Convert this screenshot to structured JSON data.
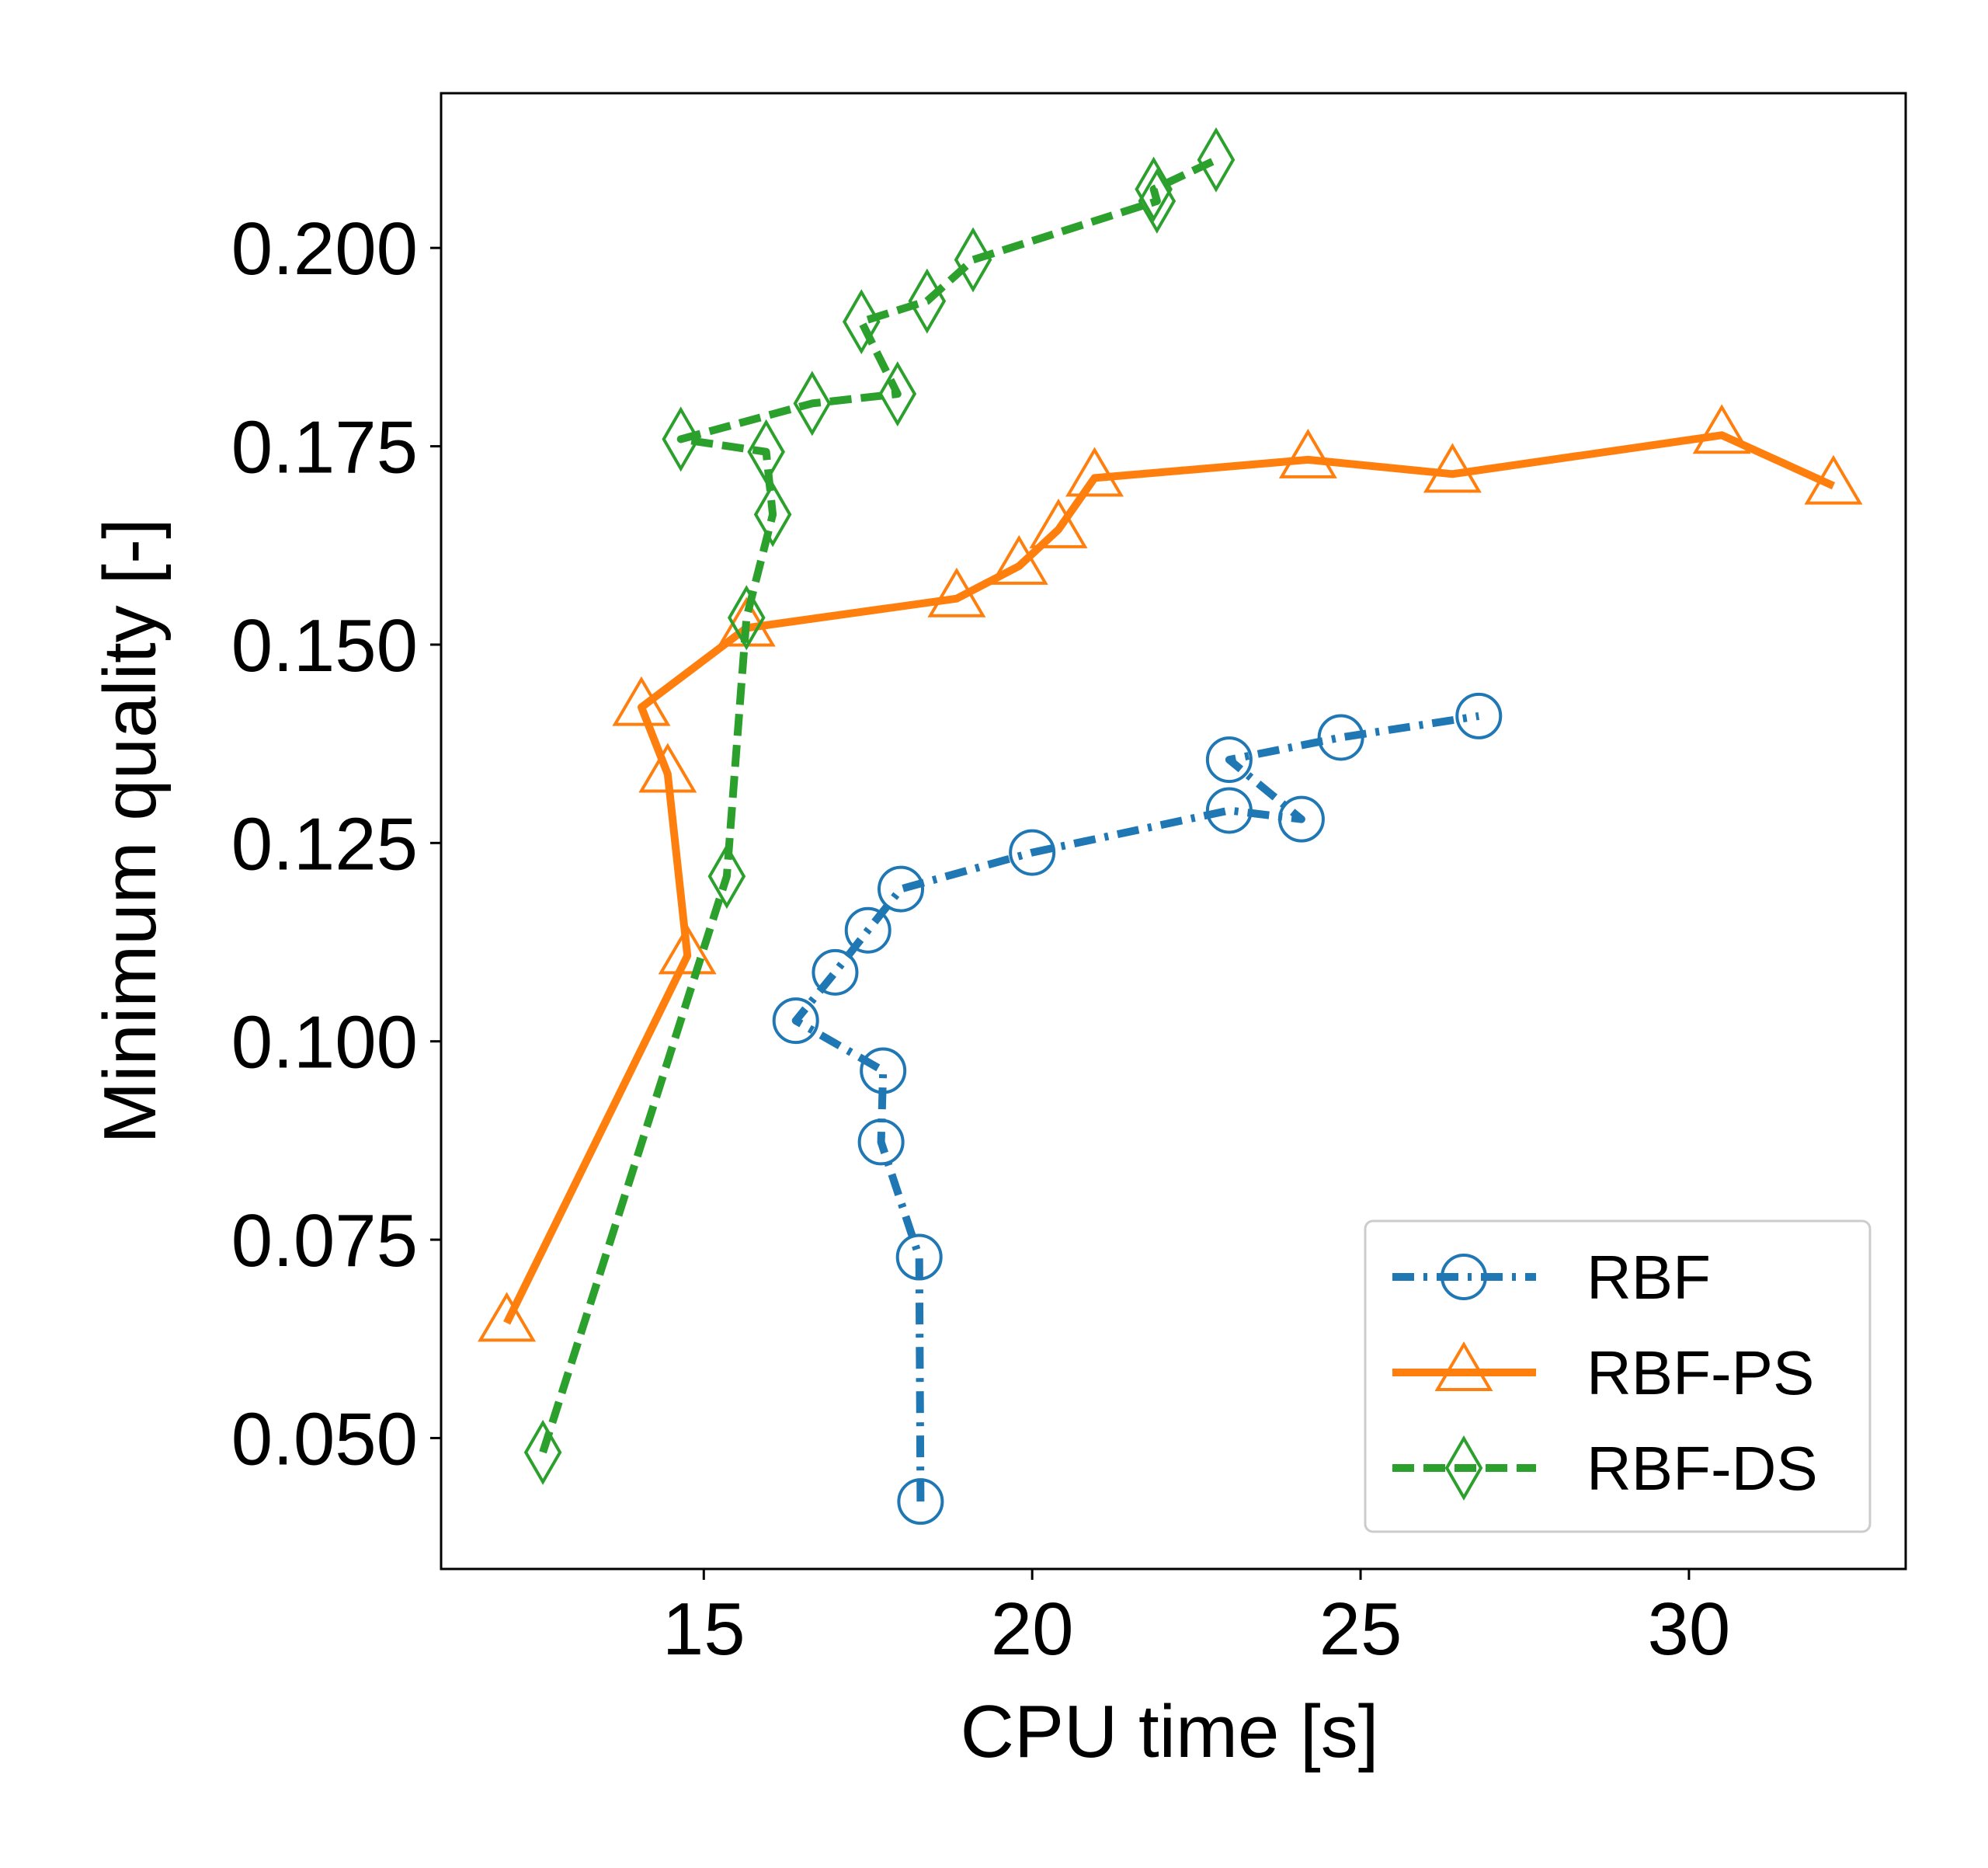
{
  "chart_data": {
    "type": "line",
    "title": "",
    "xlabel": "CPU time [s]",
    "ylabel": "Minimum quality [-]",
    "xlim": [
      11,
      33.3
    ],
    "ylim": [
      0.0335,
      0.2195
    ],
    "xticks": [
      15,
      20,
      25,
      30
    ],
    "xtick_labels": [
      "15",
      "20",
      "25",
      "30"
    ],
    "yticks": [
      0.05,
      0.075,
      0.1,
      0.125,
      0.15,
      0.175,
      0.2
    ],
    "ytick_labels": [
      "0.050",
      "0.075",
      "0.100",
      "0.125",
      "0.150",
      "0.175",
      "0.200"
    ],
    "grid": false,
    "legend_position": "lower-right",
    "series": [
      {
        "name": "RBF",
        "color": "#1f77b4",
        "marker": "circle",
        "line_style": "dash-dot",
        "x": [
          18.3,
          18.28,
          17.7,
          17.73,
          16.4,
          17.0,
          17.5,
          18.0,
          20.0,
          23.0,
          24.1,
          23.0,
          24.7,
          26.8
        ],
        "y": [
          0.042,
          0.0728,
          0.0873,
          0.0963,
          0.1026,
          0.1087,
          0.114,
          0.1192,
          0.1238,
          0.1291,
          0.128,
          0.1355,
          0.1383,
          0.141
        ]
      },
      {
        "name": "RBF-PS",
        "color": "#ff7f0e",
        "marker": "triangle",
        "line_style": "solid",
        "x": [
          12.0,
          14.75,
          14.45,
          14.05,
          15.65,
          18.85,
          19.8,
          20.4,
          20.95,
          24.2,
          26.4,
          30.5,
          32.2
        ],
        "y": [
          0.0645,
          0.1108,
          0.1337,
          0.1421,
          0.1521,
          0.1558,
          0.1599,
          0.1645,
          0.171,
          0.1733,
          0.1715,
          0.1764,
          0.17
        ]
      },
      {
        "name": "RBF-DS",
        "color": "#2ca02c",
        "marker": "diamond",
        "line_style": "dashed",
        "x": [
          12.55,
          15.35,
          15.65,
          16.05,
          15.95,
          14.65,
          16.65,
          17.95,
          17.4,
          18.4,
          19.1,
          21.9,
          21.85,
          22.8
        ],
        "y": [
          0.0482,
          0.1208,
          0.1534,
          0.1664,
          0.1743,
          0.1759,
          0.1804,
          0.1816,
          0.1907,
          0.1933,
          0.1985,
          0.2059,
          0.2074,
          0.2111
        ]
      }
    ]
  }
}
